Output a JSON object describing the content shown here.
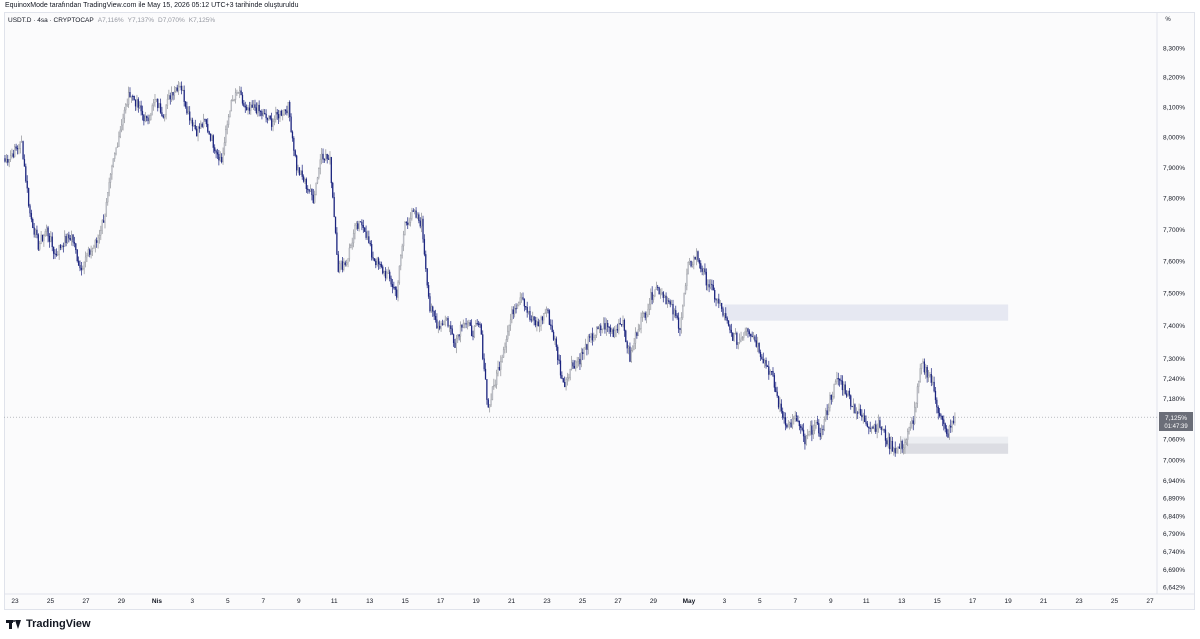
{
  "header": {
    "attribution": "EquinoxMode tarafından TradingView.com ile May 15, 2026 05:12 UTC+3 tarihinde oluşturuldu"
  },
  "legend": {
    "symbol": "USDT.D · 4sa · CRYPTOCAP",
    "open": "A7,116%",
    "high": "Y7,137%",
    "low": "D7,070%",
    "close": "K7,125%"
  },
  "price_scale": {
    "unit": "%",
    "current_price": "7,125%",
    "countdown": "01:47:39"
  },
  "footer": {
    "brand": "TradingView"
  },
  "colors": {
    "up_candle": "#d1d4dc",
    "down_candle": "#1a237e",
    "zone": "#e6e8f2",
    "zone_dark": "#dcdde3",
    "price_tag": "#6b6e78"
  },
  "chart_data": {
    "type": "candlestick",
    "title": "USDT.D · 4sa · CRYPTOCAP",
    "xlabel": "",
    "ylabel": "",
    "y_ticks": [
      "8,300%",
      "8,200%",
      "8,100%",
      "8,000%",
      "7,900%",
      "7,800%",
      "7,700%",
      "7,600%",
      "7,500%",
      "7,400%",
      "7,300%",
      "7,240%",
      "7,180%",
      "7,060%",
      "7,000%",
      "6,940%",
      "6,890%",
      "6,840%",
      "6,790%",
      "6,740%",
      "6,690%",
      "6,642%"
    ],
    "x_ticks": [
      "23",
      "25",
      "27",
      "29",
      "Nis",
      "3",
      "5",
      "7",
      "9",
      "11",
      "13",
      "15",
      "17",
      "19",
      "21",
      "23",
      "25",
      "27",
      "29",
      "May",
      "3",
      "5",
      "7",
      "9",
      "11",
      "13",
      "15",
      "17",
      "19",
      "21",
      "23",
      "25",
      "27"
    ],
    "ylim": [
      6.642,
      8.35
    ],
    "log_scale": true,
    "grid": false,
    "current_price": 7.125,
    "zones": [
      {
        "from": "May 2",
        "to": "May 18",
        "low": 7.415,
        "high": 7.465
      },
      {
        "from": "May 12",
        "to": "May 18",
        "low": 7.018,
        "high": 7.048
      },
      {
        "from": "May 12",
        "to": "May 18",
        "low": 7.048,
        "high": 7.068
      }
    ],
    "ohlc_path": [
      7.92,
      7.95,
      7.98,
      7.75,
      7.65,
      7.7,
      7.62,
      7.66,
      7.68,
      7.58,
      7.62,
      7.66,
      7.75,
      7.92,
      8.05,
      8.15,
      8.1,
      8.05,
      8.12,
      8.08,
      8.15,
      8.18,
      8.08,
      8.02,
      8.05,
      7.98,
      7.92,
      8.1,
      8.15,
      8.08,
      8.1,
      8.07,
      8.05,
      8.08,
      8.1,
      7.9,
      7.85,
      7.8,
      7.95,
      7.92,
      7.58,
      7.6,
      7.7,
      7.72,
      7.62,
      7.58,
      7.55,
      7.5,
      7.72,
      7.75,
      7.72,
      7.45,
      7.4,
      7.42,
      7.35,
      7.42,
      7.38,
      7.4,
      7.15,
      7.25,
      7.35,
      7.45,
      7.5,
      7.42,
      7.4,
      7.45,
      7.35,
      7.22,
      7.28,
      7.3,
      7.35,
      7.38,
      7.4,
      7.38,
      7.42,
      7.3,
      7.4,
      7.45,
      7.52,
      7.5,
      7.45,
      7.4,
      7.58,
      7.62,
      7.55,
      7.5,
      7.45,
      7.38,
      7.35,
      7.4,
      7.36,
      7.3,
      7.25,
      7.15,
      7.1,
      7.12,
      7.05,
      7.1,
      7.08,
      7.18,
      7.24,
      7.2,
      7.15,
      7.12,
      7.1,
      7.1,
      7.05,
      7.03,
      7.05,
      7.12,
      7.28,
      7.25,
      7.15,
      7.07,
      7.12
    ]
  }
}
